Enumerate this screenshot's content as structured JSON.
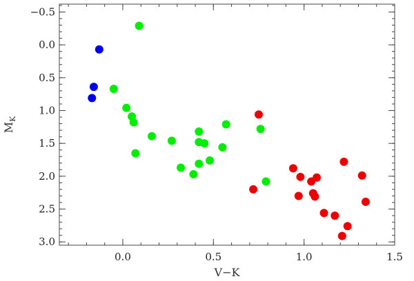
{
  "chart_data": {
    "type": "scatter",
    "title": "",
    "xlabel": "V−K",
    "ylabel": "M",
    "ylabel_subscript": "K",
    "xlim": [
      -0.35,
      1.5
    ],
    "ylim": [
      3.05,
      -0.62
    ],
    "y_inverted": true,
    "grid": false,
    "x_ticks": [
      0.0,
      0.5,
      1.0,
      1.5
    ],
    "x_tick_labels": [
      "0.0",
      "0.5",
      "1.0",
      "1.5"
    ],
    "x_minor_step": 0.1,
    "y_ticks": [
      -0.5,
      0.0,
      0.5,
      1.0,
      1.5,
      2.0,
      2.5,
      3.0
    ],
    "y_tick_labels": [
      "−0.5",
      "0.0",
      "0.5",
      "1.0",
      "1.5",
      "2.0",
      "2.5",
      "3.0"
    ],
    "y_minor_step": 0.1,
    "series": [
      {
        "color": "#0000ee",
        "points": [
          {
            "x": -0.13,
            "y": 0.07
          },
          {
            "x": -0.16,
            "y": 0.64
          },
          {
            "x": -0.17,
            "y": 0.81
          }
        ]
      },
      {
        "color": "#00ee00",
        "points": [
          {
            "x": 0.09,
            "y": -0.29
          },
          {
            "x": -0.05,
            "y": 0.67
          },
          {
            "x": 0.02,
            "y": 0.96
          },
          {
            "x": 0.05,
            "y": 1.09
          },
          {
            "x": 0.06,
            "y": 1.18
          },
          {
            "x": 0.07,
            "y": 1.65
          },
          {
            "x": 0.16,
            "y": 1.39
          },
          {
            "x": 0.27,
            "y": 1.46
          },
          {
            "x": 0.32,
            "y": 1.87
          },
          {
            "x": 0.39,
            "y": 1.97
          },
          {
            "x": 0.42,
            "y": 1.32
          },
          {
            "x": 0.42,
            "y": 1.48
          },
          {
            "x": 0.42,
            "y": 1.81
          },
          {
            "x": 0.45,
            "y": 1.5
          },
          {
            "x": 0.48,
            "y": 1.76
          },
          {
            "x": 0.55,
            "y": 1.56
          },
          {
            "x": 0.57,
            "y": 1.21
          },
          {
            "x": 0.76,
            "y": 1.28
          },
          {
            "x": 0.79,
            "y": 2.08
          }
        ]
      },
      {
        "color": "#ee0000",
        "points": [
          {
            "x": 0.75,
            "y": 1.06
          },
          {
            "x": 0.72,
            "y": 2.2
          },
          {
            "x": 0.94,
            "y": 1.88
          },
          {
            "x": 0.98,
            "y": 2.01
          },
          {
            "x": 0.97,
            "y": 2.3
          },
          {
            "x": 1.04,
            "y": 2.08
          },
          {
            "x": 1.07,
            "y": 2.02
          },
          {
            "x": 1.05,
            "y": 2.26
          },
          {
            "x": 1.06,
            "y": 2.31
          },
          {
            "x": 1.11,
            "y": 2.56
          },
          {
            "x": 1.17,
            "y": 2.6
          },
          {
            "x": 1.22,
            "y": 1.78
          },
          {
            "x": 1.24,
            "y": 2.76
          },
          {
            "x": 1.21,
            "y": 2.91
          },
          {
            "x": 1.32,
            "y": 1.99
          },
          {
            "x": 1.34,
            "y": 2.39
          }
        ]
      }
    ]
  }
}
